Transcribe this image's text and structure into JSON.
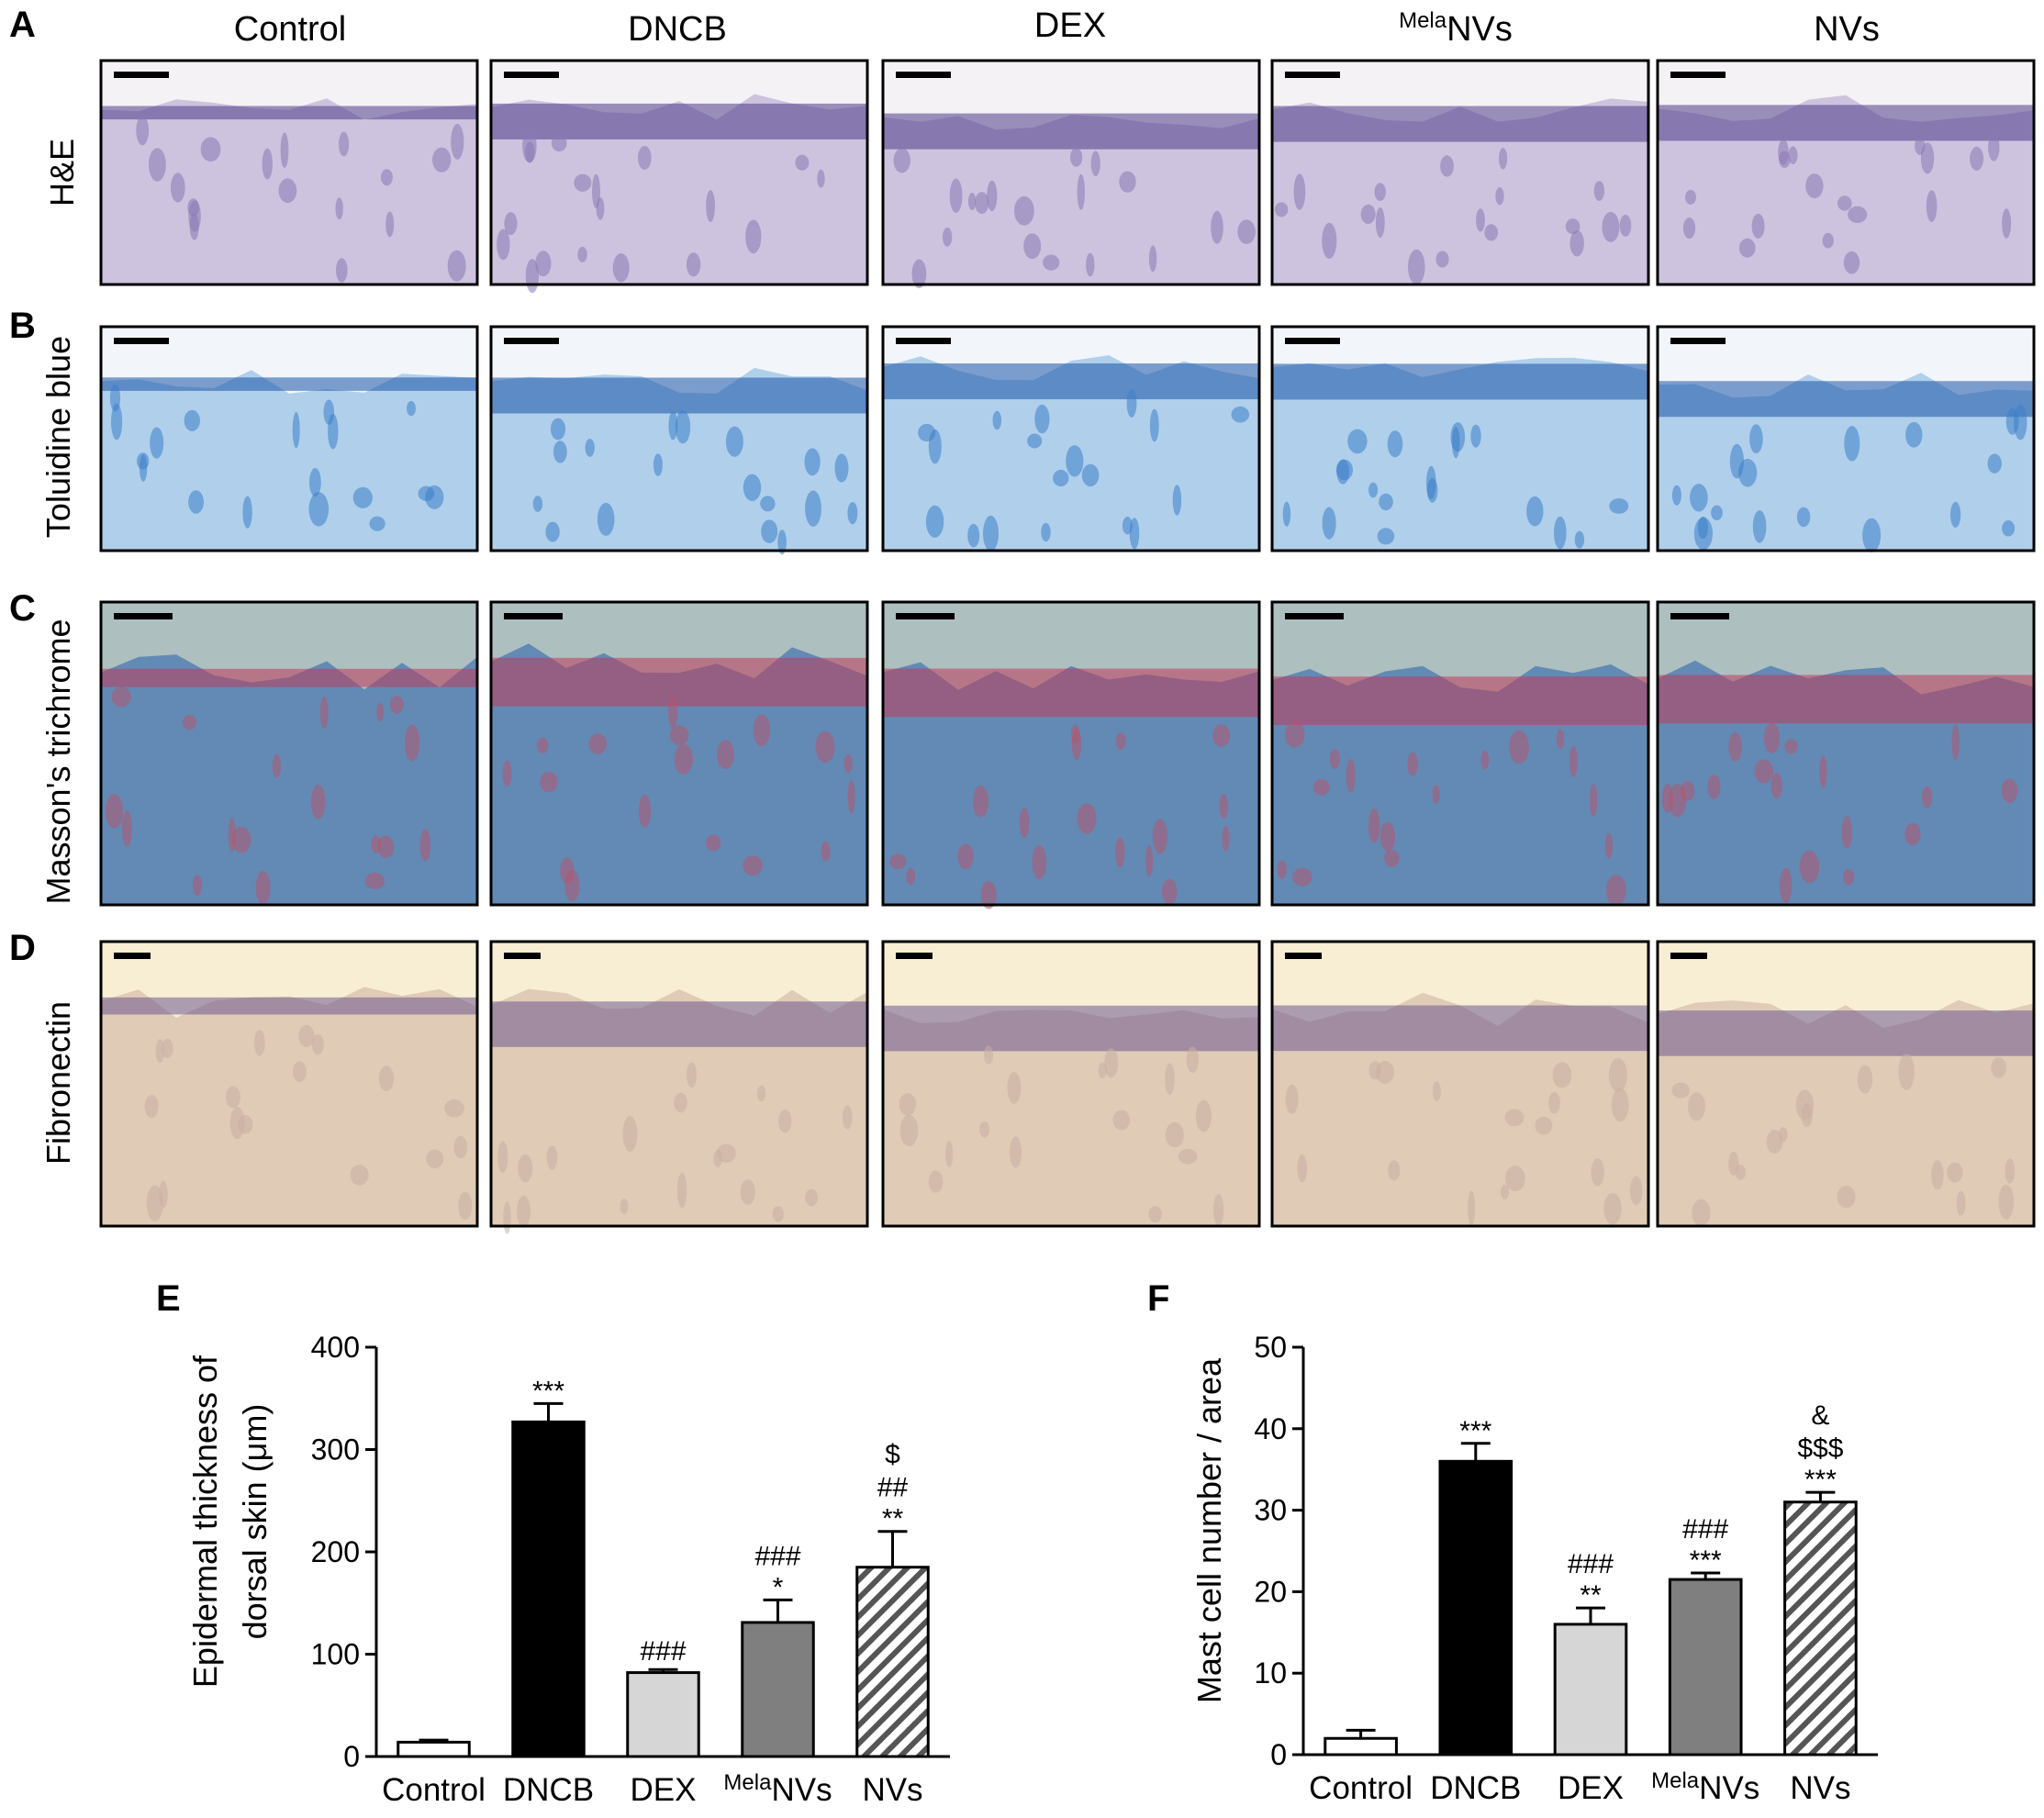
{
  "figure": {
    "columns": [
      {
        "pre": "",
        "main": "Control"
      },
      {
        "pre": "",
        "main": "DNCB"
      },
      {
        "pre": "",
        "main": "DEX"
      },
      {
        "pre": "Mela",
        "main": "NVs"
      },
      {
        "pre": "",
        "main": "NVs"
      }
    ],
    "rows": [
      {
        "letter": "A",
        "label": "H&E"
      },
      {
        "letter": "B",
        "label": "Toluidine blue"
      },
      {
        "letter": "C",
        "label": "Masson's trichrome"
      },
      {
        "letter": "D",
        "label": "Fibronectin"
      }
    ]
  },
  "chart_data": [
    {
      "panel": "E",
      "type": "bar",
      "ylabel_line1": "Epidermal thickness of",
      "ylabel_line2": "dorsal skin (μm)",
      "ylim": [
        0,
        400
      ],
      "yticks": [
        0,
        100,
        200,
        300,
        400
      ],
      "categories": [
        {
          "pre": "",
          "main": "Control"
        },
        {
          "pre": "",
          "main": "DNCB"
        },
        {
          "pre": "",
          "main": "DEX"
        },
        {
          "pre": "Mela",
          "main": "NVs"
        },
        {
          "pre": "",
          "main": "NVs"
        }
      ],
      "values": [
        14,
        327,
        82,
        131,
        185
      ],
      "errors": [
        2,
        18,
        3,
        22,
        35
      ],
      "fills": [
        "white",
        "black",
        "light",
        "dark",
        "hatched"
      ],
      "significance": [
        [],
        [
          "***"
        ],
        [
          "###"
        ],
        [
          "*",
          "###"
        ],
        [
          "**",
          "##",
          "$"
        ]
      ]
    },
    {
      "panel": "F",
      "type": "bar",
      "ylabel_line1": "Mast cell number / area",
      "ylim": [
        0,
        50
      ],
      "yticks": [
        0,
        10,
        20,
        30,
        40,
        50
      ],
      "categories": [
        {
          "pre": "",
          "main": "Control"
        },
        {
          "pre": "",
          "main": "DNCB"
        },
        {
          "pre": "",
          "main": "DEX"
        },
        {
          "pre": "Mela",
          "main": "NVs"
        },
        {
          "pre": "",
          "main": "NVs"
        }
      ],
      "values": [
        2,
        36,
        16,
        21.5,
        31
      ],
      "errors": [
        1,
        2.2,
        2,
        0.8,
        1.2
      ],
      "fills": [
        "white",
        "black",
        "light",
        "dark",
        "hatched"
      ],
      "significance": [
        [],
        [
          "***"
        ],
        [
          "**",
          "###"
        ],
        [
          "***",
          "###"
        ],
        [
          "***",
          "$$$",
          "&"
        ]
      ]
    }
  ]
}
